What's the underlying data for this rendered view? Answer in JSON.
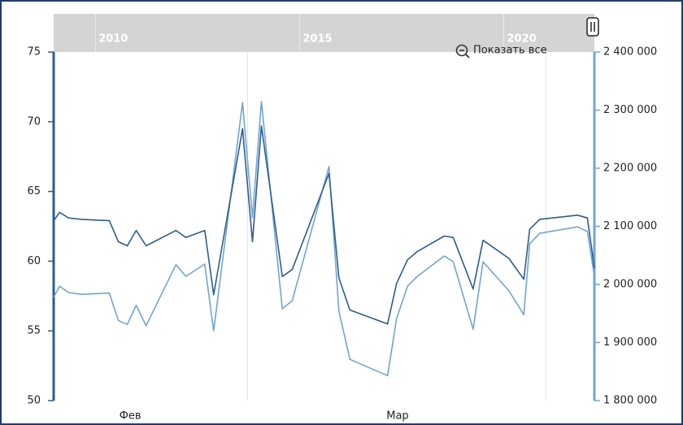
{
  "chart_data": {
    "type": "line",
    "zoom_button": "Показать все",
    "x": [
      0,
      0.6,
      1.5,
      2.8,
      5.6,
      6.5,
      7.4,
      8.3,
      9.3,
      12.3,
      13.3,
      15.2,
      16.1,
      19.0,
      20.0,
      20.9,
      23.0,
      24.0,
      27.7,
      28.7,
      29.8,
      33.6,
      34.5,
      35.6,
      36.6,
      39.3,
      40.2,
      42.2,
      43.2,
      45.8,
      47.3,
      47.9,
      48.9,
      52.7,
      53.7,
      54.4
    ],
    "xlim": [
      0,
      54.4
    ],
    "xticks": [
      {
        "value": 7.7,
        "label": "Фев"
      },
      {
        "value": 34.6,
        "label": "Мар"
      }
    ],
    "xgrid": [
      19.5,
      49.5
    ],
    "navigator": {
      "xlim": [
        2008.98,
        2022.22
      ],
      "xticks": [
        2010,
        2015,
        2020
      ]
    },
    "ylim": [
      50,
      75
    ],
    "yticks": [
      50,
      55,
      60,
      65,
      70,
      75
    ],
    "y2lim": [
      1800000,
      2400000
    ],
    "y2ticks": [
      {
        "value": 1800000,
        "label": "1 800 000"
      },
      {
        "value": 1900000,
        "label": "1 900 000"
      },
      {
        "value": 2000000,
        "label": "2 000 000"
      },
      {
        "value": 2100000,
        "label": "2 100 000"
      },
      {
        "value": 2200000,
        "label": "2 200 000"
      },
      {
        "value": 2300000,
        "label": "2 300 000"
      },
      {
        "value": 2400000,
        "label": "2 400 000"
      }
    ],
    "series": [
      {
        "color": "#2c5d8f",
        "axis": "y",
        "values": [
          62.9,
          63.5,
          63.1,
          63.0,
          62.9,
          61.4,
          61.1,
          62.2,
          61.1,
          62.2,
          61.7,
          62.2,
          57.6,
          69.5,
          61.4,
          69.7,
          58.9,
          59.4,
          66.3,
          58.8,
          56.5,
          55.5,
          58.4,
          60.1,
          60.7,
          61.8,
          61.7,
          58.0,
          61.5,
          60.2,
          58.7,
          62.3,
          63.0,
          63.3,
          63.1,
          59.5
        ]
      },
      {
        "color": "#6fa5d7",
        "axis": "y2",
        "values": [
          1978000,
          1997000,
          1986000,
          1983000,
          1985000,
          1938000,
          1931000,
          1964000,
          1929000,
          2034000,
          2014000,
          2035000,
          1920000,
          2313000,
          2115000,
          2315000,
          1958000,
          1972000,
          2203000,
          1954000,
          1871000,
          1843000,
          1941000,
          1997000,
          2014000,
          2049000,
          2039000,
          1923000,
          2039000,
          1989000,
          1948000,
          2070000,
          2088000,
          2099000,
          2091000,
          2014000
        ]
      }
    ]
  }
}
